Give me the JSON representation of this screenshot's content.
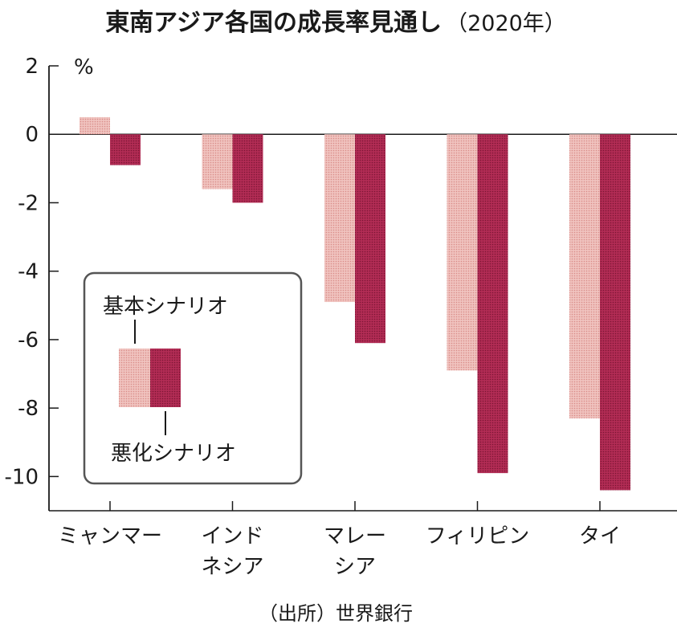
{
  "chart_data": {
    "type": "bar",
    "title": "東南アジア各国の成長率見通し",
    "subtitle": "（2020年）",
    "ylabel": "%",
    "xlabel": "",
    "ylim": [
      -11,
      2
    ],
    "yticks": [
      2,
      0,
      -2,
      -4,
      -6,
      -8,
      -10
    ],
    "grid": false,
    "categories": [
      [
        "ミャンマー"
      ],
      [
        "インド",
        "ネシア"
      ],
      [
        "マレー",
        "シア"
      ],
      [
        "フィリピン"
      ],
      [
        "タイ"
      ]
    ],
    "series": [
      {
        "name": "基本シナリオ",
        "values": [
          0.5,
          -1.6,
          -4.9,
          -6.9,
          -8.3
        ],
        "color": "#e8a9a4"
      },
      {
        "name": "悪化シナリオ",
        "values": [
          -0.9,
          -2.0,
          -6.1,
          -9.9,
          -10.4
        ],
        "color": "#a3234a"
      }
    ],
    "legend": {
      "placement": "lower-left"
    },
    "source": "（出所）世界銀行"
  }
}
